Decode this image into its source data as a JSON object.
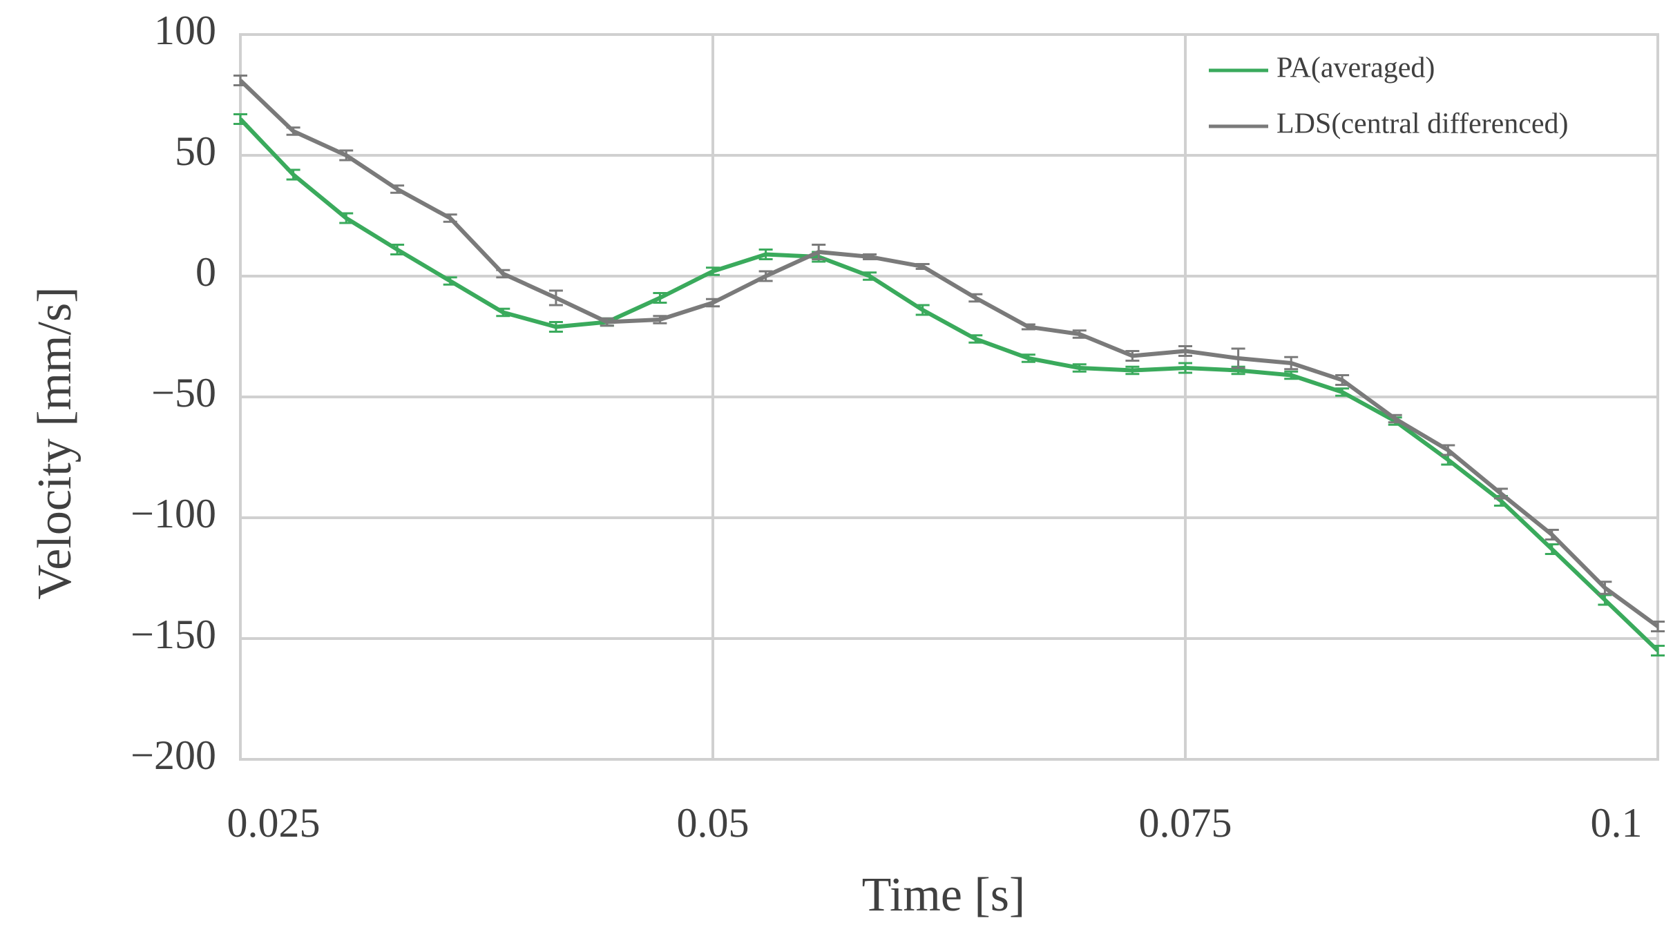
{
  "chart_data": {
    "type": "line",
    "x_label": "Time [s]",
    "y_label": "Velocity [mm/s]",
    "x": [
      0.025,
      0.0278,
      0.0306,
      0.0333,
      0.0361,
      0.0389,
      0.0417,
      0.0444,
      0.0472,
      0.05,
      0.0528,
      0.0556,
      0.0583,
      0.0611,
      0.0639,
      0.0667,
      0.0694,
      0.0722,
      0.075,
      0.0778,
      0.0806,
      0.0833,
      0.0861,
      0.0889,
      0.0917,
      0.0944,
      0.0972,
      0.1
    ],
    "series": [
      {
        "name": "PA(averaged)",
        "color": "#3aaa5c",
        "values": [
          65,
          42,
          24,
          11,
          -2,
          -15,
          -21,
          -19,
          -9,
          2,
          9,
          8,
          0,
          -14,
          -26,
          -34,
          -38,
          -39,
          -38,
          -39,
          -41,
          -48,
          -60,
          -76,
          -93,
          -113,
          -134,
          -155
        ],
        "errors": [
          2,
          2,
          2,
          2,
          1.5,
          1.5,
          2,
          1.5,
          2,
          1.5,
          2,
          2,
          1.5,
          2,
          1.5,
          1.5,
          1.5,
          1.5,
          2,
          1.5,
          1.5,
          1.5,
          1.5,
          2,
          2,
          2,
          2,
          2
        ]
      },
      {
        "name": "LDS(central differenced)",
        "color": "#7a7a7a",
        "values": [
          81,
          60,
          50,
          36,
          24,
          1,
          -9,
          -19,
          -18,
          -11,
          0,
          10,
          8,
          4,
          -9,
          -21,
          -24,
          -33,
          -31,
          -34,
          -36,
          -43,
          -59,
          -72,
          -90,
          -107,
          -129,
          -145
        ],
        "errors": [
          2,
          1.5,
          2,
          1.5,
          1.5,
          1.5,
          3,
          1.5,
          1.5,
          1.5,
          2,
          3,
          1,
          1,
          1.5,
          1,
          1.5,
          2,
          2,
          4,
          2.5,
          2,
          1.5,
          2,
          2,
          2,
          2.5,
          2
        ]
      }
    ],
    "xlim": [
      0.025,
      0.1
    ],
    "xticks": [
      0.025,
      0.05,
      0.075,
      0.1
    ],
    "ylim": [
      -200,
      100
    ],
    "yticks": [
      {
        "value": -200,
        "label": "−200"
      },
      {
        "value": -150,
        "label": "−150"
      },
      {
        "value": -100,
        "label": "−100"
      },
      {
        "value": -50,
        "label": "−50"
      },
      0,
      50,
      100
    ],
    "grid": true,
    "legend": "upper right"
  }
}
